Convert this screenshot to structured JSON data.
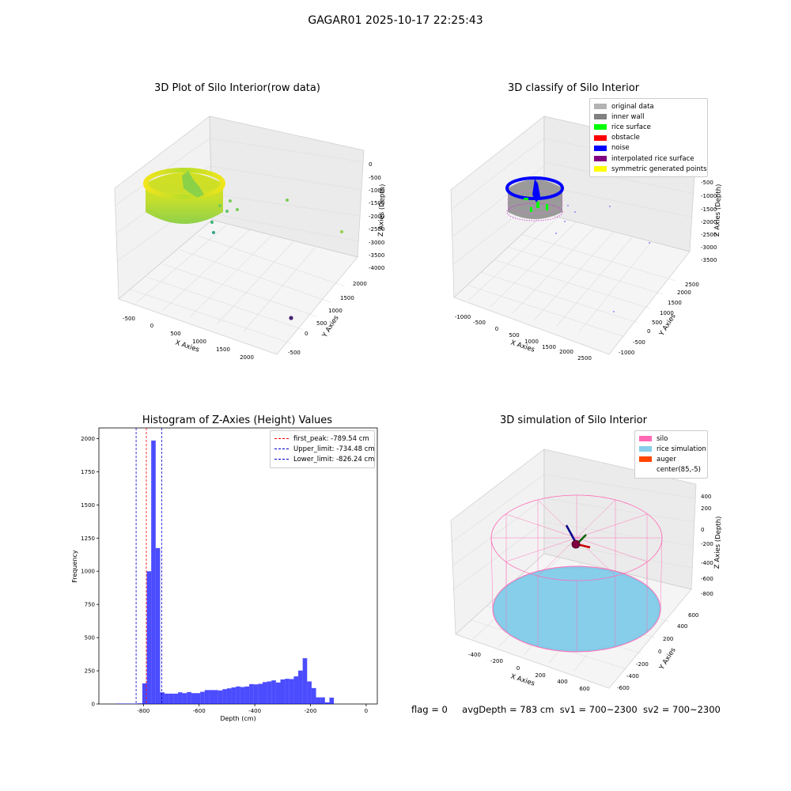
{
  "figure": {
    "title": "GAGAR01 2025-10-17 22:25:43",
    "footer": {
      "flag": "flag = 0",
      "avg_depth": "avgDepth = 783 cm",
      "sv1": "sv1 = 700~2300",
      "sv2": "sv2 = 700~2300"
    }
  },
  "chart_data": [
    {
      "type": "scatter",
      "title": "3D Plot of Silo Interior(row data)",
      "xlabel": "X Axies",
      "ylabel": "Y Axies",
      "zlabel": "Z Axies (Depth)",
      "x_ticks": [
        "-500",
        "0",
        "500",
        "1000",
        "1500",
        "2000"
      ],
      "y_ticks": [
        "-500",
        "0",
        "500",
        "1000",
        "1500",
        "2000"
      ],
      "z_ticks": [
        "0",
        "-500",
        "-1000",
        "-1500",
        "-2000",
        "-2500",
        "-3000",
        "-3500",
        "-4000"
      ],
      "colormap": [
        "#440154",
        "#21918c",
        "#7ad151",
        "#fde725"
      ],
      "note_points": "dense ring of points (cylindrical silo wall) near x≈-400..100, y≈500..1500, z≈-800..-1500; a few outliers"
    },
    {
      "type": "scatter",
      "title": "3D classify of Silo Interior",
      "xlabel": "X Axies",
      "ylabel": "Y Axies",
      "zlabel": "Z Axies (Depth)",
      "x_ticks": [
        "-1000",
        "-500",
        "0",
        "500",
        "1000",
        "1500",
        "2000",
        "2500"
      ],
      "y_ticks": [
        "-1000",
        "-500",
        "0",
        "500",
        "1000",
        "1500",
        "2000",
        "2500"
      ],
      "z_ticks": [
        "0",
        "-500",
        "-1000",
        "-1500",
        "-2000",
        "-2500",
        "-3000",
        "-3500"
      ],
      "legend": [
        {
          "label": "original data",
          "color": "#b3b3b3"
        },
        {
          "label": "inner wall",
          "color": "#808080"
        },
        {
          "label": "rice surface",
          "color": "#00ff00"
        },
        {
          "label": "obstacle",
          "color": "#ff0000"
        },
        {
          "label": "noise",
          "color": "#0000ff"
        },
        {
          "label": "interpolated rice surface",
          "color": "#800080"
        },
        {
          "label": "symmetric generated points",
          "color": "#ffff00"
        }
      ]
    },
    {
      "type": "bar",
      "title": "Histogram of Z-Axies (Height) Values",
      "xlabel": "Depth (cm)",
      "ylabel": "Frequency",
      "xlim": [
        -960,
        40
      ],
      "ylim": [
        0,
        2080
      ],
      "x_ticks": [
        -800,
        -600,
        -400,
        -200,
        0
      ],
      "y_ticks": [
        0,
        250,
        500,
        750,
        1000,
        1250,
        1500,
        1750,
        2000
      ],
      "bar_color": "#0000ff",
      "bin_start": -900,
      "bin_width": 16,
      "values": [
        3,
        3,
        3,
        3,
        3,
        5,
        155,
        1000,
        1985,
        1175,
        88,
        78,
        78,
        78,
        88,
        82,
        90,
        82,
        82,
        92,
        105,
        105,
        105,
        102,
        112,
        118,
        125,
        132,
        128,
        132,
        150,
        148,
        152,
        165,
        170,
        178,
        162,
        185,
        190,
        188,
        208,
        252,
        345,
        170,
        120,
        50,
        50,
        12,
        48
      ],
      "lines": [
        {
          "label": "first_peak: -789.54 cm",
          "value": -789.54,
          "color": "#ff0000"
        },
        {
          "label": "Upper_limit: -734.48 cm",
          "value": -734.48,
          "color": "#0000cc"
        },
        {
          "label": "Lower_limit: -826.24 cm",
          "value": -826.24,
          "color": "#0000cc"
        }
      ]
    },
    {
      "type": "scatter",
      "title": "3D simulation of Silo Interior",
      "xlabel": "X Axies",
      "ylabel": "Y Axies",
      "zlabel": "Z Axies (Depth)",
      "x_ticks": [
        "-400",
        "-200",
        "0",
        "200",
        "400",
        "600"
      ],
      "y_ticks": [
        "-600",
        "-400",
        "-200",
        "0",
        "200",
        "400",
        "600"
      ],
      "z_ticks": [
        "400",
        "200",
        "0",
        "-200",
        "-400",
        "-600",
        "-800"
      ],
      "legend": [
        {
          "label": "silo",
          "color": "#ff69b4"
        },
        {
          "label": "rice simulation",
          "color": "#87ceeb"
        },
        {
          "label": "auger",
          "color": "#ff4500"
        },
        {
          "label": "center(85,-5)",
          "color": "#ffffff"
        }
      ]
    }
  ]
}
